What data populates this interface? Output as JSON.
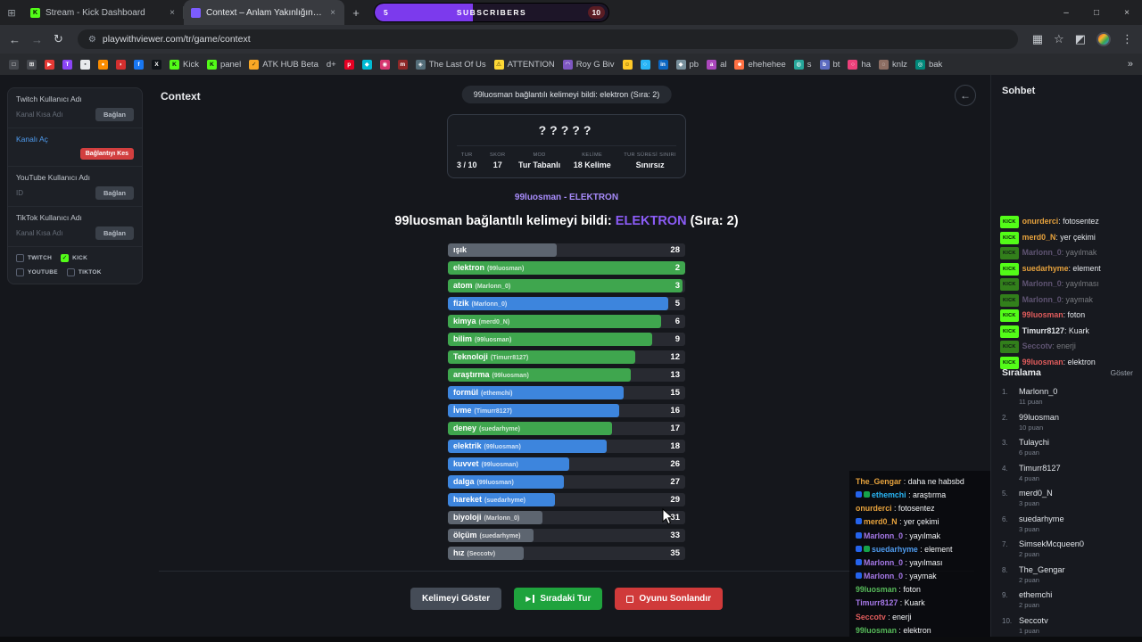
{
  "icons": {
    "app": "⊞",
    "back": "←",
    "forward": "→",
    "reload": "↻",
    "site_settings": "⚙",
    "side_panel": "▦",
    "star": "☆",
    "extensions": "◩",
    "menu": "⋮",
    "minimize": "–",
    "maximize": "□",
    "close": "×",
    "new_tab": "+",
    "overflow": "»",
    "back_circle": "←",
    "next": "▶"
  },
  "browser": {
    "tabs": [
      {
        "title": "Stream - Kick Dashboard",
        "fav_bg": "#53fc18",
        "fav_glyph": "K"
      },
      {
        "title": "Context – Anlam Yakınlığın…",
        "fav_bg": "#7c5cff",
        "fav_glyph": ""
      }
    ],
    "url": "playwithviewer.com/tr/game/context",
    "sub_goal": {
      "current": "5",
      "label": "SUBSCRIBERS",
      "goal": "10",
      "fill_pct": "42%",
      "color": "#7c3aed"
    },
    "bookmarks": [
      {
        "glyph": "□",
        "bg": "#45484e",
        "label": ""
      },
      {
        "glyph": "⊞",
        "bg": "#45484e",
        "label": ""
      },
      {
        "glyph": "▶",
        "bg": "#e53935",
        "label": ""
      },
      {
        "glyph": "T",
        "bg": "#8b44f7",
        "label": ""
      },
      {
        "glyph": "▪",
        "bg": "#e8eaed",
        "fg": "#45484e",
        "label": ""
      },
      {
        "glyph": "●",
        "bg": "#fb8c00",
        "label": ""
      },
      {
        "glyph": "◗",
        "bg": "#d32f2f",
        "label": ""
      },
      {
        "glyph": "f",
        "bg": "#1877f2",
        "label": ""
      },
      {
        "glyph": "X",
        "bg": "#0f1419",
        "label": ""
      },
      {
        "glyph": "K",
        "bg": "#53fc18",
        "fg": "#04100a",
        "label": "Kick"
      },
      {
        "glyph": "K",
        "bg": "#53fc18",
        "fg": "#04100a",
        "label": "panel"
      },
      {
        "glyph": "✓",
        "bg": "#f9a825",
        "fg": "#2d2300",
        "label": "ATK HUB Beta"
      },
      {
        "glyph": "",
        "label": "d+"
      },
      {
        "glyph": "p",
        "bg": "#e60023",
        "label": ""
      },
      {
        "glyph": "◆",
        "bg": "#00bcd4",
        "label": ""
      },
      {
        "glyph": "◉",
        "bg": "#d6366f",
        "label": ""
      },
      {
        "glyph": "m",
        "bg": "#8e2727",
        "label": ""
      },
      {
        "glyph": "◈",
        "bg": "#546e7a",
        "label": "The Last Of Us"
      },
      {
        "glyph": "⚠",
        "bg": "#fdd835",
        "fg": "#3d2f00",
        "label": "ATTENTION"
      },
      {
        "glyph": "◠",
        "bg": "#7e57c2",
        "label": "Roy G Biv"
      },
      {
        "glyph": "☺",
        "bg": "#ffca28",
        "fg": "#5c4500",
        "label": ""
      },
      {
        "glyph": "○",
        "bg": "#29b6f6",
        "label": ""
      },
      {
        "glyph": "in",
        "bg": "#0a66c2",
        "label": ""
      },
      {
        "glyph": "◆",
        "bg": "#78909c",
        "label": "pb"
      },
      {
        "glyph": "a",
        "bg": "#ab47bc",
        "label": "al"
      },
      {
        "glyph": "☻",
        "bg": "#ff7043",
        "label": "ehehehee"
      },
      {
        "glyph": "◍",
        "bg": "#26a69a",
        "label": "s"
      },
      {
        "glyph": "b",
        "bg": "#5c6bc0",
        "label": "bt"
      },
      {
        "glyph": "○",
        "bg": "#ec407a",
        "label": "ha"
      },
      {
        "glyph": "◌",
        "bg": "#8d6e63",
        "label": "knlz"
      },
      {
        "glyph": "◎",
        "bg": "#00897b",
        "label": "bak"
      }
    ]
  },
  "connect_panel": {
    "twitch_label": "Twitch Kullanıcı Adı",
    "twitch_placeholder": "Kanal Kısa Adı",
    "connect": "Bağlan",
    "kick_link": "Kanalı Aç",
    "disconnect": "Bağlantıyı Kes",
    "youtube_label": "YouTube Kullanıcı Adı",
    "youtube_placeholder": "ID",
    "tiktok_label": "TikTok Kullanıcı Adı",
    "tiktok_placeholder": "Kanal Kısa Adı",
    "platforms": [
      {
        "label": "TWITCH",
        "mark": "",
        "state": ""
      },
      {
        "label": "KICK",
        "mark": "✓",
        "state": "checked"
      },
      {
        "label": "YOUTUBE",
        "mark": "",
        "state": ""
      },
      {
        "label": "TIKTOK",
        "mark": "",
        "state": ""
      }
    ]
  },
  "game": {
    "title": "Context",
    "toast": "99luosman bağlantılı kelimeyi bildi: elektron (Sıra: 2)",
    "mystery": "?????",
    "stats": [
      {
        "label": "TUR",
        "value": "3 / 10"
      },
      {
        "label": "SKOR",
        "value": "17"
      },
      {
        "label": "MOD",
        "value": "Tur Tabanlı"
      },
      {
        "label": "KELİME",
        "value": "18 Kelime"
      },
      {
        "label": "TUR SÜRESİ SINIRI",
        "value": "Sınırsız"
      }
    ],
    "subtitle": "99luosman - ELEKTRON",
    "headline_prefix": "99luosman bağlantılı kelimeyi bildi: ",
    "headline_word": "ELEKTRON",
    "headline_suffix": " (Sıra: 2)",
    "words": [
      {
        "word": "ışık",
        "user": "",
        "rank": "28",
        "fill": "46%",
        "color": "gray"
      },
      {
        "word": "elektron",
        "user": "99luosman",
        "rank": "2",
        "fill": "100%",
        "color": "green"
      },
      {
        "word": "atom",
        "user": "Marlonn_0",
        "rank": "3",
        "fill": "99%",
        "color": "green"
      },
      {
        "word": "fizik",
        "user": "Marlonn_0",
        "rank": "5",
        "fill": "93%",
        "color": "blue"
      },
      {
        "word": "kimya",
        "user": "merd0_N",
        "rank": "6",
        "fill": "90%",
        "color": "green"
      },
      {
        "word": "bilim",
        "user": "99luosman",
        "rank": "9",
        "fill": "86%",
        "color": "green"
      },
      {
        "word": "Teknoloji",
        "user": "Timurr8127",
        "rank": "12",
        "fill": "79%",
        "color": "green"
      },
      {
        "word": "araştırma",
        "user": "99luosman",
        "rank": "13",
        "fill": "77%",
        "color": "green"
      },
      {
        "word": "formül",
        "user": "ethemchi",
        "rank": "15",
        "fill": "74%",
        "color": "blue"
      },
      {
        "word": "İvme",
        "user": "Timurr8127",
        "rank": "16",
        "fill": "72%",
        "color": "blue"
      },
      {
        "word": "deney",
        "user": "suedarhyme",
        "rank": "17",
        "fill": "69%",
        "color": "green"
      },
      {
        "word": "elektrik",
        "user": "99luosman",
        "rank": "18",
        "fill": "67%",
        "color": "blue"
      },
      {
        "word": "kuvvet",
        "user": "99luosman",
        "rank": "26",
        "fill": "51%",
        "color": "blue"
      },
      {
        "word": "dalga",
        "user": "99luosman",
        "rank": "27",
        "fill": "49%",
        "color": "blue"
      },
      {
        "word": "hareket",
        "user": "suedarhyme",
        "rank": "29",
        "fill": "45%",
        "color": "blue"
      },
      {
        "word": "biyoloji",
        "user": "Marlonn_0",
        "rank": "31",
        "fill": "40%",
        "color": "gray"
      },
      {
        "word": "ölçüm",
        "user": "suedarhyme",
        "rank": "33",
        "fill": "36%",
        "color": "gray"
      },
      {
        "word": "hız",
        "user": "Seccotv",
        "rank": "35",
        "fill": "32%",
        "color": "gray"
      }
    ],
    "buttons": {
      "reveal": "Kelimeyi Göster",
      "next": "Sıradaki Tur",
      "end": "Oyunu Sonlandır"
    }
  },
  "chat": {
    "title": "Sohbet",
    "messages": [
      {
        "platform": "KICK",
        "name": "onurderci",
        "text": "fotosentez",
        "color": "#e8a33d",
        "fade": ""
      },
      {
        "platform": "KICK",
        "name": "merd0_N",
        "text": "yer çekimi",
        "color": "#e8a33d",
        "fade": ""
      },
      {
        "platform": "KICK",
        "name": "Marlonn_0",
        "text": "yayılmak",
        "color": "#b49ad6",
        "fade": "faded"
      },
      {
        "platform": "KICK",
        "name": "suedarhyme",
        "text": "element",
        "color": "#e8a33d",
        "fade": ""
      },
      {
        "platform": "KICK",
        "name": "Marlonn_0",
        "text": "yayılması",
        "color": "#b49ad6",
        "fade": "faded"
      },
      {
        "platform": "KICK",
        "name": "Marlonn_0",
        "text": "yaymak",
        "color": "#b49ad6",
        "fade": "faded"
      },
      {
        "platform": "KICK",
        "name": "99luosman",
        "text": "foton",
        "color": "#e05c5c",
        "fade": ""
      },
      {
        "platform": "KICK",
        "name": "Timurr8127",
        "text": "Kuark",
        "color": "#e3e6ea",
        "fade": ""
      },
      {
        "platform": "KICK",
        "name": "Seccotv",
        "text": "enerji",
        "color": "#b49ad6",
        "fade": "faded"
      },
      {
        "platform": "KICK",
        "name": "99luosman",
        "text": "elektron",
        "color": "#e05c5c",
        "fade": ""
      }
    ]
  },
  "ranking": {
    "title": "Sıralama",
    "show": "Göster",
    "rows": [
      {
        "rank": "1.",
        "name": "Marlonn_0",
        "points": "11 puan"
      },
      {
        "rank": "2.",
        "name": "99luosman",
        "points": "10 puan"
      },
      {
        "rank": "3.",
        "name": "Tulaychi",
        "points": "6 puan"
      },
      {
        "rank": "4.",
        "name": "Timurr8127",
        "points": "4 puan"
      },
      {
        "rank": "5.",
        "name": "merd0_N",
        "points": "3 puan"
      },
      {
        "rank": "6.",
        "name": "suedarhyme",
        "points": "3 puan"
      },
      {
        "rank": "7.",
        "name": "SimsekMcqueen0",
        "points": "2 puan"
      },
      {
        "rank": "8.",
        "name": "The_Gengar",
        "points": "2 puan"
      },
      {
        "rank": "9.",
        "name": "ethemchi",
        "points": "2 puan"
      },
      {
        "rank": "10.",
        "name": "Seccotv",
        "points": "1 puan"
      }
    ]
  },
  "overlay_chat": {
    "messages": [
      {
        "name": "The_Gengar",
        "text": "daha ne habsbd",
        "color": "#e8a33d",
        "badges": []
      },
      {
        "name": "ethemchi",
        "text": "araştırma",
        "color": "#29b6f6",
        "badges": [
          "#2563eb",
          "#16a34a"
        ]
      },
      {
        "name": "onurderci",
        "text": "fotosentez",
        "color": "#e8a33d",
        "badges": []
      },
      {
        "name": "merd0_N",
        "text": "yer çekimi",
        "color": "#e8a33d",
        "badges": [
          "#2563eb"
        ]
      },
      {
        "name": "Marlonn_0",
        "text": "yayılmak",
        "color": "#a678e8",
        "badges": [
          "#2563eb"
        ]
      },
      {
        "name": "suedarhyme",
        "text": "element",
        "color": "#4f9cf0",
        "badges": [
          "#2563eb",
          "#16a34a"
        ]
      },
      {
        "name": "Marlonn_0",
        "text": "yayılması",
        "color": "#a678e8",
        "badges": [
          "#2563eb"
        ]
      },
      {
        "name": "Marlonn_0",
        "text": "yaymak",
        "color": "#a678e8",
        "badges": [
          "#2563eb"
        ]
      },
      {
        "name": "99luosman",
        "text": "foton",
        "color": "#57bb5a",
        "badges": []
      },
      {
        "name": "Timurr8127",
        "text": "Kuark",
        "color": "#a678e8",
        "badges": []
      },
      {
        "name": "Seccotv",
        "text": "enerji",
        "color": "#e05c5c",
        "badges": []
      },
      {
        "name": "99luosman",
        "text": "elektron",
        "color": "#57bb5a",
        "badges": []
      }
    ]
  }
}
